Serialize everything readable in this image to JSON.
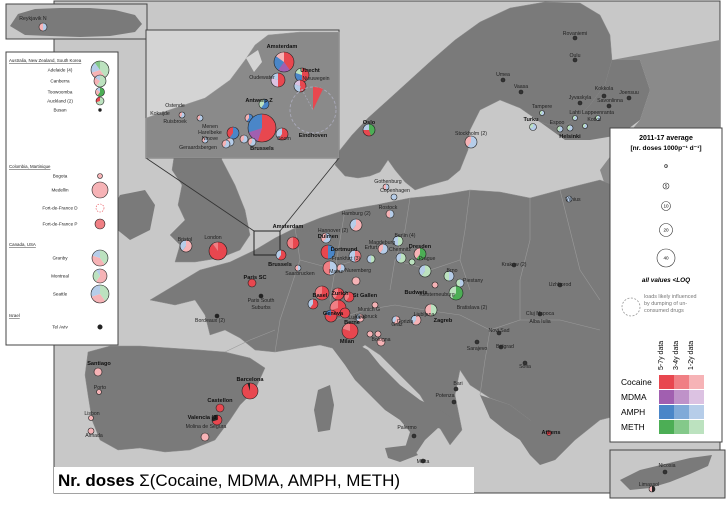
{
  "title": "Nr. doses Σ(Cocaine, MDMA, AMPH, METH)",
  "legend": {
    "title_line1": "2011-17 average",
    "title_line2": "[nr. doses 1000p⁻¹ d⁻¹]",
    "sizes": [
      "1",
      "5",
      "10",
      "20",
      "40"
    ],
    "all_values_loq": "all values <LOQ",
    "dumping_note": [
      "loads likely influenced",
      "by dumping of un-",
      "consumed drugs"
    ],
    "period_headers": [
      "5-7y data",
      "3-4y data",
      "1-2y data"
    ],
    "drugs": [
      {
        "name": "Cocaine",
        "colors": [
          "#e8474f",
          "#f07f84",
          "#f6b3b6"
        ]
      },
      {
        "name": "MDMA",
        "colors": [
          "#a15fb0",
          "#bf92c9",
          "#dcc2e2"
        ]
      },
      {
        "name": "AMPH",
        "colors": [
          "#4a86c8",
          "#80aad8",
          "#b6cde9"
        ]
      },
      {
        "name": "METH",
        "colors": [
          "#4cae55",
          "#84c98a",
          "#bce2bf"
        ]
      }
    ]
  },
  "inset_left": {
    "groups": [
      {
        "header": "Australia, New Zealand, South Korea",
        "cities": [
          "Adelaide (4)",
          "Canberra",
          "Toowoomba",
          "Auckland (2)",
          "Busan"
        ]
      },
      {
        "header": "Colombia, Martinique",
        "cities": [
          "Bogota",
          "Medellin",
          "Fort-de-France D",
          "Fort-de-France P"
        ]
      },
      {
        "header": "Canada, USA",
        "cities": [
          "Granby",
          "Montreal",
          "Seattle"
        ]
      },
      {
        "header": "Israel",
        "cities": [
          "Tel Aviv"
        ]
      }
    ]
  },
  "inset_iceland": {
    "city": "Reykjavik N"
  },
  "inset_cyprus": {
    "cities": [
      "Nicosia",
      "Limassol"
    ]
  },
  "inset_benelux": {
    "cities": [
      "Amsterdam",
      "Utrecht",
      "Oudewater",
      "Nieuwegein",
      "Eindhoven",
      "Antwerp Z",
      "Ostende",
      "Koksijde",
      "Ruisbroek",
      "Menen",
      "Harelbeke",
      "Ninove",
      "Geraardsbergen",
      "Brussels",
      "Boom"
    ]
  },
  "map_labels": {
    "bold": [
      "Oslo",
      "Turku",
      "Helsinki",
      "Amsterdam",
      "Brussels",
      "Dulmen",
      "Dortmund",
      "Dresden",
      "Budweis",
      "Zagreb",
      "Basel",
      "Zurich",
      "St Gallen",
      "Geneva",
      "Berne",
      "Milan",
      "Paris SC",
      "Barcelona",
      "Castellon",
      "Valencia (3)",
      "Santiago",
      "Athens"
    ],
    "regular": [
      "Rovaniemi",
      "Oulu",
      "Umea",
      "Vaasa",
      "Kokkola",
      "Jyvaskyla",
      "Joensuu",
      "Savonlinna",
      "Tampere",
      "Lahti",
      "Lappeenranta",
      "Espoo",
      "Kotka",
      "Stockholm (2)",
      "Gothenburg",
      "Copenhagen",
      "Rostock",
      "Hamburg (2)",
      "Hannover (2)",
      "Berlin (4)",
      "Magdeburg",
      "Erfurt",
      "Chemnitz",
      "Frankfurt (3)",
      "Saarbrucken",
      "Mainz",
      "Nuremberg",
      "Munich G",
      "Prague",
      "Brno",
      "Piestany",
      "Kiesterneuburg",
      "Bratislava (2)",
      "Innsbruck",
      "Graz",
      "Ljubljana",
      "Lugano",
      "Gorizia",
      "Bologna",
      "Sarajevo",
      "Novi Sad",
      "Belgrad",
      "Sofia",
      "Krakow (2)",
      "Uzhhorod",
      "Cluj Napoca",
      "Alba Iulia",
      "Vilnius",
      "Bristol",
      "London",
      "Paris South Suburbs",
      "Bordeaux (2)",
      "Porto",
      "Lisbon",
      "Almada",
      "Molina de Segura",
      "Palermo",
      "Malta",
      "Potenza",
      "Bari"
    ]
  }
}
